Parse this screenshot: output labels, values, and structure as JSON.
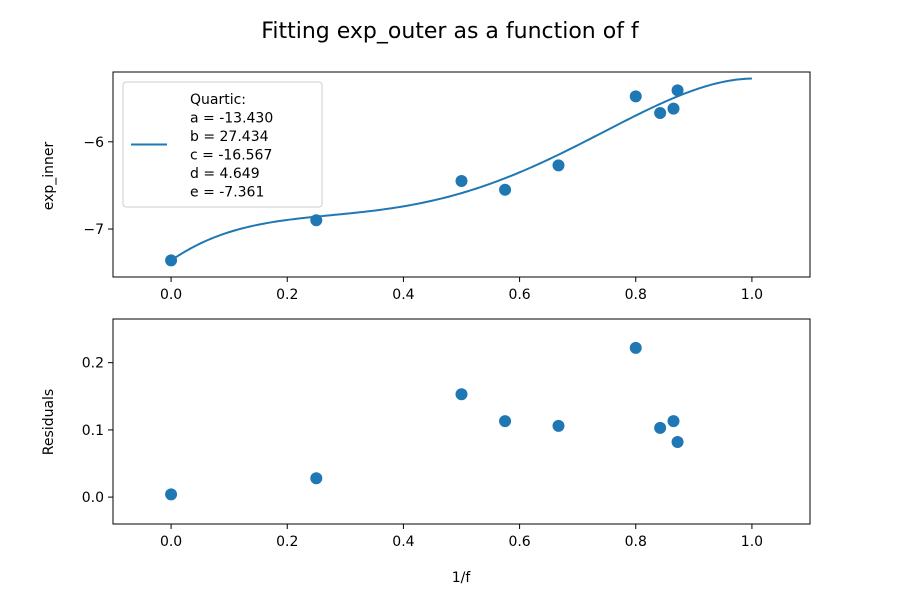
{
  "chart_data": {
    "title": "Fitting exp_outer as a function of f",
    "panels": [
      {
        "type": "scatter+line",
        "ylabel": "exp_inner",
        "xlim": [
          -0.1,
          1.1
        ],
        "ylim": [
          -7.55,
          -5.2
        ],
        "xticks": [
          0.0,
          0.2,
          0.4,
          0.6,
          0.8,
          1.0
        ],
        "xtick_labels": [
          "0.0",
          "0.2",
          "0.4",
          "0.6",
          "0.8",
          "1.0"
        ],
        "yticks": [
          -7,
          -6
        ],
        "ytick_labels": [
          "−7",
          "−6"
        ],
        "points": {
          "x": [
            0.0,
            0.25,
            0.5,
            0.575,
            0.667,
            0.8,
            0.842,
            0.865,
            0.872
          ],
          "y": [
            -7.36,
            -6.9,
            -6.45,
            -6.55,
            -6.27,
            -5.48,
            -5.67,
            -5.62,
            -5.41
          ]
        },
        "fit": {
          "label_lines": [
            "Quartic:",
            "a = -13.430",
            "b = 27.434",
            "c = -16.567",
            "d = 4.649",
            "e = -7.361"
          ],
          "coefficients": {
            "a": -13.43,
            "b": 27.434,
            "c": -16.567,
            "d": 4.649,
            "e": -7.361
          },
          "x_range": [
            0.0,
            1.0
          ]
        },
        "legend_position": "upper-left",
        "grid": false
      },
      {
        "type": "scatter",
        "ylabel": "Residuals",
        "xlabel": "1/f",
        "xlim": [
          -0.1,
          1.1
        ],
        "ylim": [
          -0.04,
          0.265
        ],
        "xticks": [
          0.0,
          0.2,
          0.4,
          0.6,
          0.8,
          1.0
        ],
        "xtick_labels": [
          "0.0",
          "0.2",
          "0.4",
          "0.6",
          "0.8",
          "1.0"
        ],
        "yticks": [
          0.0,
          0.1,
          0.2
        ],
        "ytick_labels": [
          "0.0",
          "0.1",
          "0.2"
        ],
        "points": {
          "x": [
            0.0,
            0.25,
            0.5,
            0.575,
            0.667,
            0.8,
            0.842,
            0.865,
            0.872
          ],
          "y": [
            0.004,
            0.028,
            0.153,
            0.113,
            0.106,
            0.222,
            0.103,
            0.113,
            0.082
          ]
        },
        "grid": false
      }
    ],
    "colors": {
      "series": "#1f77b4",
      "axes": "#000000"
    }
  }
}
